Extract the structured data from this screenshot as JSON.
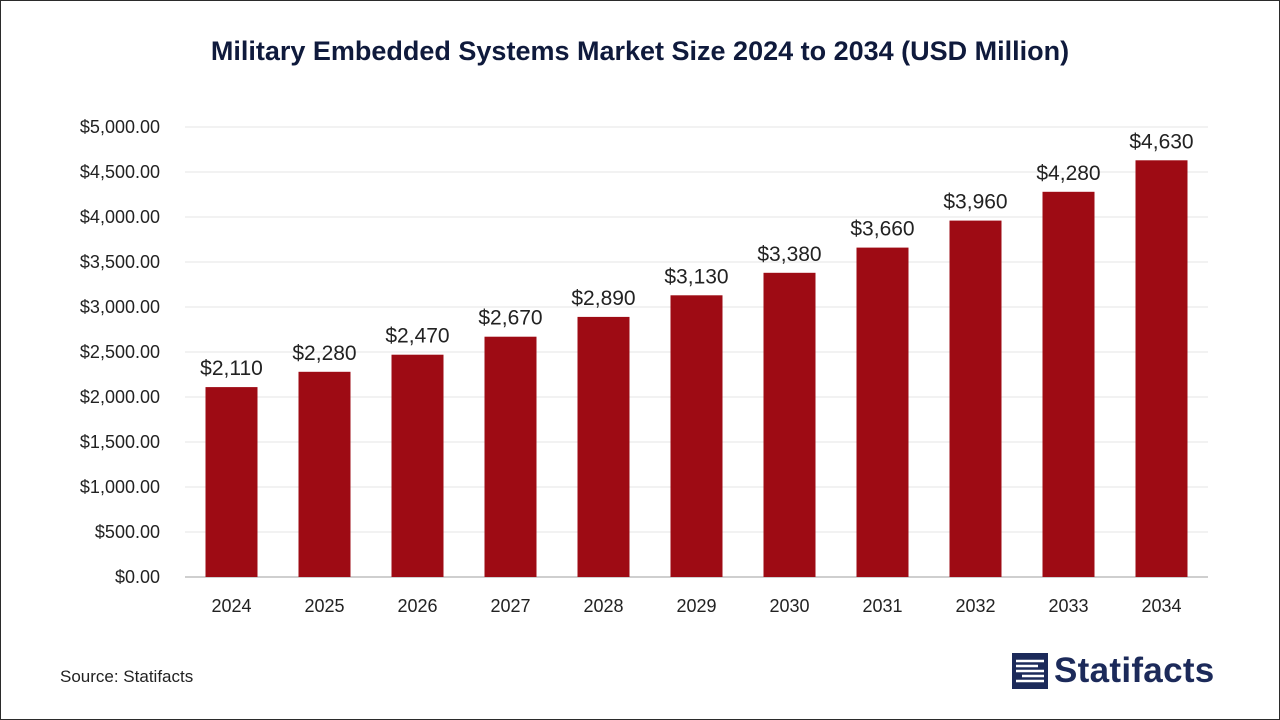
{
  "chart_data": {
    "type": "bar",
    "title": "Military Embedded Systems Market Size 2024 to 2034 (USD Million)",
    "xlabel": "",
    "ylabel": "",
    "categories": [
      "2024",
      "2025",
      "2026",
      "2027",
      "2028",
      "2029",
      "2030",
      "2031",
      "2032",
      "2033",
      "2034"
    ],
    "values": [
      2110,
      2280,
      2470,
      2670,
      2890,
      3130,
      3380,
      3660,
      3960,
      4280,
      4630
    ],
    "value_labels": [
      "$2,110",
      "$2,280",
      "$2,470",
      "$2,670",
      "$2,890",
      "$3,130",
      "$3,380",
      "$3,660",
      "$3,960",
      "$4,280",
      "$4,630"
    ],
    "ylim": [
      0,
      5000
    ],
    "y_ticks": [
      0,
      500,
      1000,
      1500,
      2000,
      2500,
      3000,
      3500,
      4000,
      4500,
      5000
    ],
    "y_tick_labels": [
      "$0.00",
      "$500.00",
      "$1,000.00",
      "$1,500.00",
      "$2,000.00",
      "$2,500.00",
      "$3,000.00",
      "$3,500.00",
      "$4,000.00",
      "$4,500.00",
      "$5,000.00"
    ],
    "grid": true,
    "legend": "none",
    "bar_color": "#9e0b14"
  },
  "footer": {
    "source": "Source: Statifacts",
    "brand": "Statifacts"
  },
  "colors": {
    "title": "#0f1a3c",
    "brand": "#1c2a5a",
    "grid": "#e6e6e6",
    "axis": "#bfbfbf"
  }
}
